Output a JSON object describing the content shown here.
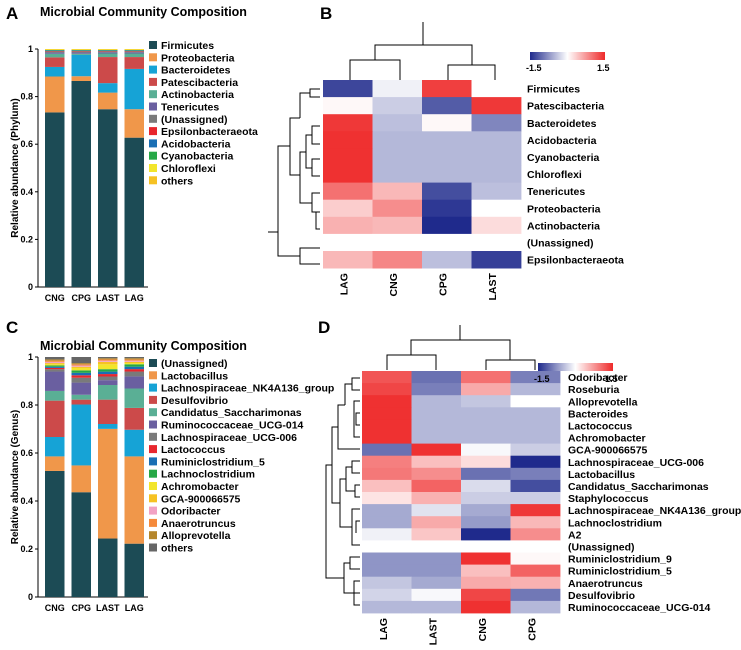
{
  "panels": {
    "a": {
      "label": "A"
    },
    "b": {
      "label": "B"
    },
    "c": {
      "label": "C"
    },
    "d": {
      "label": "D"
    }
  },
  "chart_data": [
    {
      "panel": "A",
      "type": "bar",
      "stacked": true,
      "title": "Microbial Community Composition",
      "xlabel": "",
      "ylabel": "Relative abundance (Phylum)",
      "ylim": [
        0,
        1
      ],
      "yticks": [
        "0",
        "0.2",
        "0.4",
        "0.6",
        "0.8",
        "1"
      ],
      "categories": [
        "CNG",
        "CPG",
        "LAST",
        "LAG"
      ],
      "legend_position": "right",
      "series": [
        {
          "name": "Firmicutes",
          "color": "#1c4b55",
          "values": [
            0.73,
            0.87,
            0.75,
            0.63
          ]
        },
        {
          "name": "Proteobacteria",
          "color": "#f0974a",
          "values": [
            0.15,
            0.02,
            0.07,
            0.12
          ]
        },
        {
          "name": "Bacteroidetes",
          "color": "#16a3d6",
          "values": [
            0.04,
            0.09,
            0.04,
            0.17
          ]
        },
        {
          "name": "Patescibacteria",
          "color": "#cc4a4a",
          "values": [
            0.04,
            0.0,
            0.11,
            0.05
          ]
        },
        {
          "name": "Actinobacteria",
          "color": "#5aaf95",
          "values": [
            0.015,
            0.005,
            0.015,
            0.015
          ]
        },
        {
          "name": "Tenericutes",
          "color": "#6a5fa0",
          "values": [
            0.005,
            0.005,
            0.005,
            0.005
          ]
        },
        {
          "name": "(Unassigned)",
          "color": "#7a7a7a",
          "values": [
            0.005,
            0.005,
            0.004,
            0.004
          ]
        },
        {
          "name": "Epsilonbacteraeota",
          "color": "#e8262d",
          "values": [
            0.002,
            0.002,
            0.002,
            0.002
          ]
        },
        {
          "name": "Acidobacteria",
          "color": "#1a6fb4",
          "values": [
            0.002,
            0.002,
            0.002,
            0.002
          ]
        },
        {
          "name": "Cyanobacteria",
          "color": "#26a846",
          "values": [
            0.002,
            0.002,
            0.002,
            0.002
          ]
        },
        {
          "name": "Chloroflexi",
          "color": "#f2e52b",
          "values": [
            0.002,
            0.002,
            0.002,
            0.002
          ]
        },
        {
          "name": "others",
          "color": "#f6c223",
          "values": [
            0.002,
            0.002,
            0.002,
            0.002
          ]
        }
      ]
    },
    {
      "panel": "B",
      "type": "heatmap",
      "title": "",
      "columns": [
        "LAG",
        "CNG",
        "CPG",
        "LAST"
      ],
      "rows": [
        "Firmicutes",
        "Patescibacteria",
        "Bacteroidetes",
        "Acidobacteria",
        "Cyanobacteria",
        "Chloroflexi",
        "Tenericutes",
        "Proteobacteria",
        "Actinobacteria",
        "(Unassigned)",
        "Epsilonbacteraeota"
      ],
      "values": [
        [
          -1.3,
          -0.1,
          1.35,
          0.0
        ],
        [
          0.05,
          -0.35,
          -1.15,
          1.4
        ],
        [
          1.4,
          -0.45,
          0.05,
          -0.85
        ],
        [
          1.45,
          -0.5,
          -0.5,
          -0.5
        ],
        [
          1.45,
          -0.5,
          -0.5,
          -0.5
        ],
        [
          1.45,
          -0.5,
          -0.5,
          -0.5
        ],
        [
          1.0,
          0.5,
          -1.25,
          -0.45
        ],
        [
          0.35,
          0.8,
          -1.4,
          0.0
        ],
        [
          0.55,
          0.5,
          -1.5,
          0.25
        ],
        [
          0.0,
          0.0,
          0.0,
          0.0
        ],
        [
          0.5,
          0.85,
          -0.45,
          -1.35
        ]
      ],
      "color_scale": {
        "min": -1.5,
        "max": 1.5,
        "min_label": "-1.5",
        "max_label": "1.5",
        "low_color": "#1f2a8c",
        "mid_color": "#ffffff",
        "high_color": "#ee2a2a"
      }
    },
    {
      "panel": "C",
      "type": "bar",
      "stacked": true,
      "title": "Microbial Community Composition",
      "xlabel": "",
      "ylabel": "Relative abundance (Genus)",
      "ylim": [
        0,
        1
      ],
      "yticks": [
        "0",
        "0.2",
        "0.4",
        "0.6",
        "0.8",
        "1"
      ],
      "categories": [
        "CNG",
        "CPG",
        "LAST",
        "LAG"
      ],
      "legend_position": "right",
      "series": [
        {
          "name": "(Unassigned)",
          "color": "#1c4b55",
          "values": [
            0.52,
            0.43,
            0.24,
            0.22
          ]
        },
        {
          "name": "Lactobacillus",
          "color": "#f0974a",
          "values": [
            0.06,
            0.11,
            0.45,
            0.36
          ]
        },
        {
          "name": "Lachnospiraceae_NK4A136_group",
          "color": "#16a3d6",
          "values": [
            0.08,
            0.25,
            0.02,
            0.11
          ]
        },
        {
          "name": "Desulfovibrio",
          "color": "#cc4a4a",
          "values": [
            0.15,
            0.02,
            0.1,
            0.09
          ]
        },
        {
          "name": "Candidatus_Saccharimonas",
          "color": "#5aaf95",
          "values": [
            0.04,
            0.02,
            0.06,
            0.08
          ]
        },
        {
          "name": "Ruminococcaceae_UCG-014",
          "color": "#6a5fa0",
          "values": [
            0.08,
            0.05,
            0.02,
            0.05
          ]
        },
        {
          "name": "Lachnospiraceae_UCG-006",
          "color": "#7a7a7a",
          "values": [
            0.01,
            0.02,
            0.015,
            0.02
          ]
        },
        {
          "name": "Lactococcus",
          "color": "#e8262d",
          "values": [
            0.005,
            0.01,
            0.01,
            0.01
          ]
        },
        {
          "name": "Ruminiclostridium_5",
          "color": "#1a6fb4",
          "values": [
            0.005,
            0.01,
            0.01,
            0.01
          ]
        },
        {
          "name": "Lachnoclostridium",
          "color": "#26a846",
          "values": [
            0.005,
            0.01,
            0.01,
            0.01
          ]
        },
        {
          "name": "Achromobacter",
          "color": "#f2e52b",
          "values": [
            0.005,
            0.01,
            0.02,
            0.005
          ]
        },
        {
          "name": "GCA-900066575",
          "color": "#f6c223",
          "values": [
            0.005,
            0.005,
            0.01,
            0.005
          ]
        },
        {
          "name": "Odoribacter",
          "color": "#f2a2c4",
          "values": [
            0.005,
            0.005,
            0.005,
            0.005
          ]
        },
        {
          "name": "Anaerotruncus",
          "color": "#f58a3c",
          "values": [
            0.005,
            0.005,
            0.005,
            0.005
          ]
        },
        {
          "name": "Alloprevotella",
          "color": "#b5862b",
          "values": [
            0.005,
            0.005,
            0.005,
            0.005
          ]
        },
        {
          "name": "others",
          "color": "#666666",
          "values": [
            0.01,
            0.025,
            0.005,
            0.005
          ]
        }
      ]
    },
    {
      "panel": "D",
      "type": "heatmap",
      "title": "",
      "columns": [
        "LAG",
        "LAST",
        "CNG",
        "CPG"
      ],
      "rows": [
        "Odoribacter",
        "Roseburia",
        "Alloprevotella",
        "Bacteroides",
        "Lactococcus",
        "Achromobacter",
        "GCA-900066575",
        "Lachnospiraceae_UCG-006",
        "Lactobacillus",
        "Candidatus_Saccharimonas",
        "Staphylococcus",
        "Lachnospiraceae_NK4A136_group",
        "Lachnoclostridium",
        "A2",
        "(Unassigned)",
        "Ruminiclostridium_9",
        "Ruminiclostridium_5",
        "Anaerotruncus",
        "Desulfovibrio",
        "Ruminococcaceae_UCG-014"
      ],
      "values": [
        [
          1.2,
          -1.0,
          1.0,
          -0.9
        ],
        [
          1.3,
          -0.9,
          0.6,
          -0.5
        ],
        [
          1.45,
          -0.5,
          -0.4,
          0.0
        ],
        [
          1.45,
          -0.5,
          -0.5,
          -0.5
        ],
        [
          1.45,
          -0.5,
          -0.5,
          -0.5
        ],
        [
          1.45,
          -0.5,
          -0.5,
          -0.5
        ],
        [
          -1.0,
          1.45,
          -0.05,
          -0.35
        ],
        [
          0.9,
          0.45,
          0.25,
          -1.5
        ],
        [
          0.95,
          0.8,
          -1.0,
          -0.9
        ],
        [
          0.45,
          1.1,
          -0.25,
          -1.25
        ],
        [
          0.2,
          0.55,
          -0.35,
          -0.35
        ],
        [
          -0.6,
          -0.2,
          -0.6,
          1.4
        ],
        [
          -0.6,
          0.6,
          -0.7,
          0.5
        ],
        [
          -0.1,
          0.4,
          -1.5,
          0.8
        ],
        [
          0.0,
          0.0,
          0.0,
          0.0
        ],
        [
          -0.75,
          -0.75,
          1.45,
          0.05
        ],
        [
          -0.75,
          -0.75,
          0.45,
          1.1
        ],
        [
          -0.4,
          -0.6,
          0.6,
          0.55
        ],
        [
          -0.3,
          -0.05,
          1.3,
          -0.95
        ],
        [
          -0.5,
          -0.5,
          1.45,
          -0.5
        ]
      ],
      "color_scale": {
        "min": -1.5,
        "max": 1.5,
        "min_label": "-1.5",
        "max_label": "1.5",
        "low_color": "#1f2a8c",
        "mid_color": "#ffffff",
        "high_color": "#ee2a2a"
      }
    }
  ]
}
